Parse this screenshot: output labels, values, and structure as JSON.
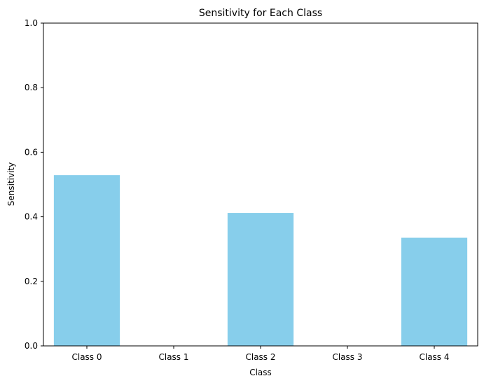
{
  "chart_data": {
    "type": "bar",
    "title": "Sensitivity for Each Class",
    "xlabel": "Class",
    "ylabel": "Sensitivity",
    "categories": [
      "Class 0",
      "Class 1",
      "Class 2",
      "Class 3",
      "Class 4"
    ],
    "values": [
      0.529,
      0.0,
      0.412,
      0.0,
      0.335
    ],
    "ylim": [
      0,
      1
    ],
    "yticks": [
      0.0,
      0.2,
      0.4,
      0.6,
      0.8,
      1.0
    ],
    "ytick_labels": [
      "0.0",
      "0.2",
      "0.4",
      "0.6",
      "0.8",
      "1.0"
    ],
    "bar_color": "#87ceeb",
    "grid": false,
    "legend": "none"
  }
}
